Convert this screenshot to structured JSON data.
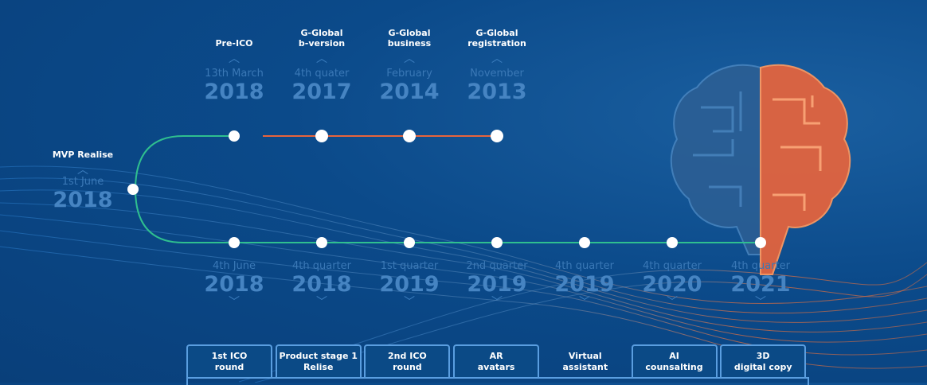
{
  "colors": {
    "background": "#0b4a8a",
    "line_green": "#2fbf8f",
    "line_orange": "#e8643c",
    "text_dim": "#3a78b6"
  },
  "top_events": [
    {
      "title": "Pre-ICO",
      "date": "13th March",
      "year": "2018"
    },
    {
      "title": "G-Global\nb-version",
      "date": "4th quater",
      "year": "2017"
    },
    {
      "title": "G-Global\nbusiness",
      "date": "February",
      "year": "2014"
    },
    {
      "title": "G-Global\nregistration",
      "date": "November",
      "year": "2013"
    }
  ],
  "left_event": {
    "title": "MVP Realise",
    "date": "1st June",
    "year": "2018"
  },
  "bottom_events": [
    {
      "date": "4th June",
      "year": "2018"
    },
    {
      "date": "4th quarter",
      "year": "2018"
    },
    {
      "date": "1st quarter",
      "year": "2019"
    },
    {
      "date": "2nd quarter",
      "year": "2019"
    },
    {
      "date": "4th quarter",
      "year": "2019"
    },
    {
      "date": "4th quarter",
      "year": "2020"
    },
    {
      "date": "4th quarter",
      "year": "2021"
    }
  ],
  "tabs": [
    "1st ICO\nround",
    "Product stage 1\nRelise",
    "2nd ICO\nround",
    "AR\navatars",
    "Virtual\nassistant",
    "AI\ncounsalting",
    "3D\ndigital copy"
  ],
  "icons": {
    "chevron_up": "chevron-up-icon",
    "chevron_down": "chevron-down-icon",
    "brain": "brain-icon"
  }
}
